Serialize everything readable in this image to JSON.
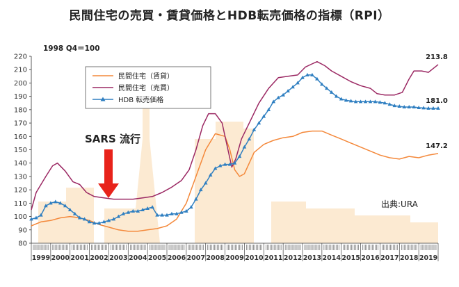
{
  "chart_data": {
    "type": "line",
    "title": "民間住宅の売買・賃貸価格とHDB転売価格の指標（RPI）",
    "base_note": "1998 Q4＝100",
    "source": "出典:URA",
    "annotation": "SARS 流行",
    "ylim": [
      80,
      220
    ],
    "yticks": [
      80,
      90,
      100,
      110,
      120,
      130,
      140,
      150,
      160,
      170,
      180,
      190,
      200,
      210,
      220
    ],
    "years": [
      "1999",
      "2000",
      "2001",
      "2002",
      "2003",
      "2004",
      "2005",
      "2006",
      "2007",
      "2008",
      "2009",
      "2010",
      "2011",
      "2012",
      "2013",
      "2014",
      "2015",
      "2016",
      "2017",
      "2018",
      "2019"
    ],
    "quarters_per_year": 4,
    "x_start": 1998.75,
    "x_end": 2019.75,
    "legend_position": "top-left",
    "grid": false,
    "series": [
      {
        "name": "民間住宅（賃貸）",
        "color": "#f4883a",
        "marker": "none",
        "end_label": "147.2",
        "points": [
          [
            1998.75,
            93
          ],
          [
            1999.25,
            96
          ],
          [
            1999.75,
            97
          ],
          [
            2000.25,
            99
          ],
          [
            2000.75,
            100
          ],
          [
            2001.25,
            99
          ],
          [
            2001.75,
            97
          ],
          [
            2002.25,
            94
          ],
          [
            2002.75,
            92
          ],
          [
            2003.25,
            90
          ],
          [
            2003.75,
            89
          ],
          [
            2004.25,
            89
          ],
          [
            2004.75,
            90
          ],
          [
            2005.25,
            91
          ],
          [
            2005.75,
            93
          ],
          [
            2006.25,
            98
          ],
          [
            2006.75,
            110
          ],
          [
            2007.25,
            130
          ],
          [
            2007.75,
            150
          ],
          [
            2008.25,
            162
          ],
          [
            2008.75,
            160
          ],
          [
            2009.0,
            150
          ],
          [
            2009.25,
            135
          ],
          [
            2009.5,
            130
          ],
          [
            2009.75,
            132
          ],
          [
            2010.0,
            140
          ],
          [
            2010.25,
            148
          ],
          [
            2010.75,
            154
          ],
          [
            2011.25,
            157
          ],
          [
            2011.75,
            159
          ],
          [
            2012.25,
            160
          ],
          [
            2012.75,
            163
          ],
          [
            2013.25,
            164
          ],
          [
            2013.75,
            164
          ],
          [
            2014.25,
            161
          ],
          [
            2014.75,
            158
          ],
          [
            2015.25,
            155
          ],
          [
            2015.75,
            152
          ],
          [
            2016.25,
            149
          ],
          [
            2016.75,
            146
          ],
          [
            2017.25,
            144
          ],
          [
            2017.75,
            143
          ],
          [
            2018.25,
            145
          ],
          [
            2018.75,
            144
          ],
          [
            2019.25,
            146
          ],
          [
            2019.75,
            147.2
          ]
        ]
      },
      {
        "name": "民間住宅（売買）",
        "color": "#9b2863",
        "marker": "none",
        "end_label": "213.8",
        "points": [
          [
            1998.75,
            105
          ],
          [
            1999.0,
            118
          ],
          [
            1999.5,
            130
          ],
          [
            1999.85,
            138
          ],
          [
            2000.1,
            140
          ],
          [
            2000.5,
            134
          ],
          [
            2000.9,
            126
          ],
          [
            2001.25,
            124
          ],
          [
            2001.6,
            118
          ],
          [
            2002.0,
            115
          ],
          [
            2002.5,
            114
          ],
          [
            2003.0,
            113
          ],
          [
            2003.5,
            113
          ],
          [
            2004.0,
            113
          ],
          [
            2004.5,
            114
          ],
          [
            2005.0,
            115
          ],
          [
            2005.5,
            118
          ],
          [
            2006.0,
            122
          ],
          [
            2006.5,
            127
          ],
          [
            2006.9,
            135
          ],
          [
            2007.25,
            150
          ],
          [
            2007.6,
            168
          ],
          [
            2007.9,
            177
          ],
          [
            2008.25,
            177
          ],
          [
            2008.6,
            170
          ],
          [
            2008.9,
            150
          ],
          [
            2009.1,
            137
          ],
          [
            2009.3,
            143
          ],
          [
            2009.6,
            158
          ],
          [
            2010.0,
            170
          ],
          [
            2010.5,
            185
          ],
          [
            2011.0,
            196
          ],
          [
            2011.5,
            204
          ],
          [
            2012.0,
            205
          ],
          [
            2012.5,
            206
          ],
          [
            2012.9,
            212
          ],
          [
            2013.2,
            214
          ],
          [
            2013.5,
            216
          ],
          [
            2013.9,
            213
          ],
          [
            2014.25,
            209
          ],
          [
            2014.75,
            205
          ],
          [
            2015.25,
            201
          ],
          [
            2015.75,
            198
          ],
          [
            2016.25,
            196
          ],
          [
            2016.6,
            192
          ],
          [
            2017.0,
            191
          ],
          [
            2017.5,
            191
          ],
          [
            2017.9,
            193
          ],
          [
            2018.25,
            203
          ],
          [
            2018.5,
            209
          ],
          [
            2018.9,
            209
          ],
          [
            2019.25,
            208
          ],
          [
            2019.75,
            213.8
          ]
        ]
      },
      {
        "name": "HDB 転売価格",
        "color": "#2f7fc1",
        "marker": "triangle",
        "end_label": "181.0",
        "points": [
          [
            1998.75,
            98
          ],
          [
            1999.0,
            99
          ],
          [
            1999.25,
            101
          ],
          [
            1999.5,
            108
          ],
          [
            1999.75,
            110
          ],
          [
            2000.0,
            111
          ],
          [
            2000.25,
            110
          ],
          [
            2000.5,
            108
          ],
          [
            2000.75,
            105
          ],
          [
            2001.0,
            102
          ],
          [
            2001.25,
            99
          ],
          [
            2001.5,
            98
          ],
          [
            2001.75,
            96
          ],
          [
            2002.0,
            95
          ],
          [
            2002.25,
            95
          ],
          [
            2002.5,
            96
          ],
          [
            2002.75,
            97
          ],
          [
            2003.0,
            98
          ],
          [
            2003.25,
            100
          ],
          [
            2003.5,
            102
          ],
          [
            2003.75,
            103
          ],
          [
            2004.0,
            104
          ],
          [
            2004.25,
            104
          ],
          [
            2004.5,
            105
          ],
          [
            2004.75,
            106
          ],
          [
            2005.0,
            107
          ],
          [
            2005.25,
            101
          ],
          [
            2005.5,
            101
          ],
          [
            2005.75,
            101
          ],
          [
            2006.0,
            102
          ],
          [
            2006.25,
            102
          ],
          [
            2006.5,
            103
          ],
          [
            2006.75,
            104
          ],
          [
            2007.0,
            107
          ],
          [
            2007.25,
            113
          ],
          [
            2007.5,
            120
          ],
          [
            2007.75,
            125
          ],
          [
            2008.0,
            131
          ],
          [
            2008.25,
            136
          ],
          [
            2008.5,
            138
          ],
          [
            2008.75,
            139
          ],
          [
            2009.0,
            139
          ],
          [
            2009.25,
            140
          ],
          [
            2009.5,
            145
          ],
          [
            2009.75,
            152
          ],
          [
            2010.0,
            158
          ],
          [
            2010.25,
            165
          ],
          [
            2010.5,
            170
          ],
          [
            2010.75,
            175
          ],
          [
            2011.0,
            180
          ],
          [
            2011.25,
            186
          ],
          [
            2011.5,
            189
          ],
          [
            2011.75,
            191
          ],
          [
            2012.0,
            194
          ],
          [
            2012.25,
            197
          ],
          [
            2012.5,
            200
          ],
          [
            2012.75,
            204
          ],
          [
            2013.0,
            206
          ],
          [
            2013.25,
            206
          ],
          [
            2013.5,
            203
          ],
          [
            2013.75,
            199
          ],
          [
            2014.0,
            196
          ],
          [
            2014.25,
            193
          ],
          [
            2014.5,
            190
          ],
          [
            2014.75,
            188
          ],
          [
            2015.0,
            187
          ],
          [
            2015.25,
            186.5
          ],
          [
            2015.5,
            186
          ],
          [
            2015.75,
            186
          ],
          [
            2016.0,
            186
          ],
          [
            2016.25,
            186
          ],
          [
            2016.5,
            186
          ],
          [
            2016.75,
            185.5
          ],
          [
            2017.0,
            185
          ],
          [
            2017.25,
            184
          ],
          [
            2017.5,
            183
          ],
          [
            2017.75,
            182.5
          ],
          [
            2018.0,
            182
          ],
          [
            2018.25,
            182
          ],
          [
            2018.5,
            182
          ],
          [
            2018.75,
            181.5
          ],
          [
            2019.0,
            181.3
          ],
          [
            2019.25,
            181
          ],
          [
            2019.5,
            181
          ],
          [
            2019.75,
            181.0
          ]
        ]
      }
    ]
  }
}
